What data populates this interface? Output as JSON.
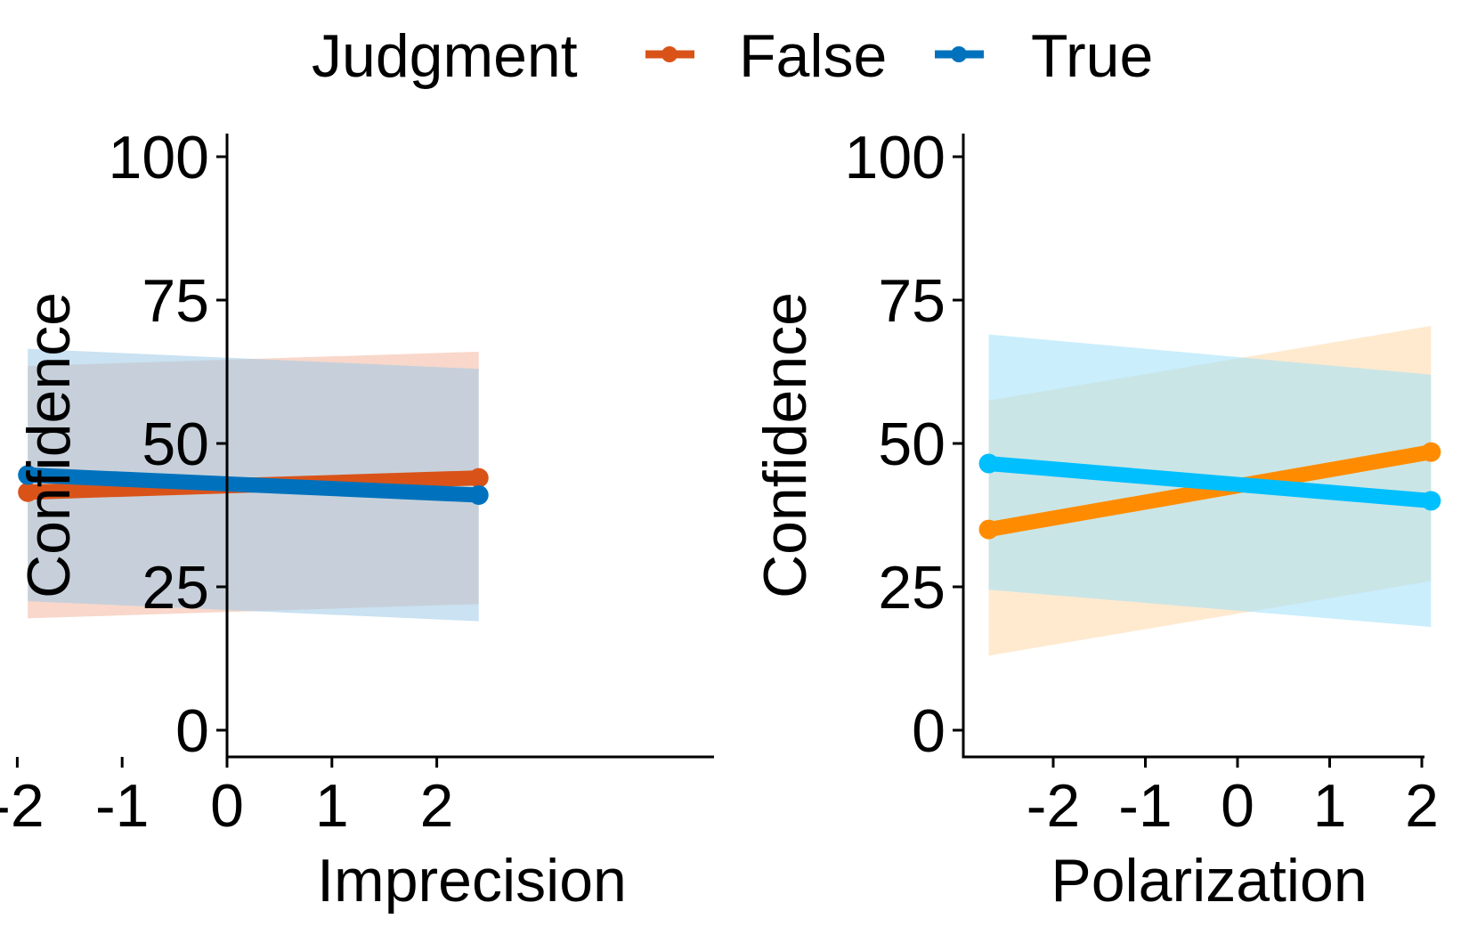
{
  "legend": {
    "title": "Judgment",
    "entries": [
      {
        "label": "False",
        "panel1_color": "#D95319",
        "panel2_color": "#FF8C00"
      },
      {
        "label": "True",
        "panel1_color": "#0072BD",
        "panel2_color": "#00BFFF"
      }
    ],
    "position": "top"
  },
  "chart_data": [
    {
      "type": "line",
      "xlabel": "Imprecision",
      "ylabel": "Confidence",
      "xlim": [
        -2.0,
        2.5
      ],
      "ylim": [
        0,
        100
      ],
      "xticks": [
        -2,
        -1,
        0,
        1,
        2
      ],
      "yticks": [
        0,
        25,
        50,
        75,
        100
      ],
      "grid": false,
      "series": [
        {
          "name": "False",
          "color": "#D95319",
          "band_color": "#F4B6A0",
          "x": [
            -1.9,
            2.4
          ],
          "y": [
            41.5,
            44.0
          ],
          "lower": [
            19.5,
            22.0
          ],
          "upper": [
            63.5,
            66.0
          ]
        },
        {
          "name": "True",
          "color": "#0072BD",
          "band_color": "#9ECAE8",
          "x": [
            -1.9,
            2.4
          ],
          "y": [
            44.5,
            41.0
          ],
          "lower": [
            22.5,
            19.0
          ],
          "upper": [
            66.5,
            63.0
          ]
        }
      ]
    },
    {
      "type": "line",
      "xlabel": "Polarization",
      "ylabel": "Confidence",
      "xlim": [
        -3.0,
        2.0
      ],
      "ylim": [
        0,
        100
      ],
      "xticks": [
        -2,
        -1,
        0,
        1,
        2
      ],
      "yticks": [
        0,
        25,
        50,
        75,
        100
      ],
      "grid": false,
      "series": [
        {
          "name": "False",
          "color": "#FF8C00",
          "band_color": "#FFD9A8",
          "x": [
            -2.7,
            2.1
          ],
          "y": [
            35.0,
            48.5
          ],
          "lower": [
            13.0,
            26.0
          ],
          "upper": [
            57.5,
            70.5
          ]
        },
        {
          "name": "True",
          "color": "#00BFFF",
          "band_color": "#9EE0FA",
          "x": [
            -2.7,
            2.1
          ],
          "y": [
            46.5,
            40.0
          ],
          "lower": [
            24.5,
            18.0
          ],
          "upper": [
            69.0,
            62.0
          ]
        }
      ]
    }
  ]
}
